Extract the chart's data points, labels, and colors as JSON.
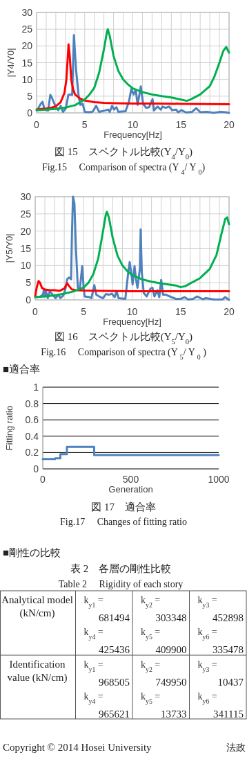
{
  "chart_data": [
    {
      "type": "line",
      "xlabel": "Frequency[Hz]",
      "ylabel": "|Y4/Y0|",
      "xlim": [
        0,
        20
      ],
      "ylim": [
        0,
        30
      ],
      "xticks": [
        0,
        {
          "value": 1,
          "label": null
        },
        {
          "value": 2,
          "label": null
        },
        {
          "value": 3,
          "label": null
        },
        {
          "value": 4,
          "label": null
        },
        5,
        {
          "value": 6,
          "label": null
        },
        {
          "value": 7,
          "label": null
        },
        {
          "value": 8,
          "label": null
        },
        {
          "value": 9,
          "label": null
        },
        10,
        {
          "value": 11,
          "label": null
        },
        {
          "value": 12,
          "label": null
        },
        {
          "value": 13,
          "label": null
        },
        {
          "value": 14,
          "label": null
        },
        15,
        {
          "value": 16,
          "label": null
        },
        {
          "value": 17,
          "label": null
        },
        {
          "value": 18,
          "label": null
        },
        {
          "value": 19,
          "label": null
        },
        20
      ],
      "yticks": [
        0,
        5,
        10,
        15,
        20,
        25,
        30
      ],
      "grid": true,
      "series": [
        {
          "color": "#4f81bd",
          "x": [
            0.07,
            0.43,
            0.62,
            0.8,
            1.0,
            1.2,
            1.43,
            1.6,
            2.0,
            2.26,
            2.5,
            2.74,
            3.05,
            3.3,
            3.5,
            3.7,
            3.88,
            4.1,
            4.38,
            4.55,
            4.8,
            5.0,
            5.4,
            5.8,
            6.2,
            6.5,
            7.1,
            7.45,
            7.6,
            7.85,
            8.05,
            8.3,
            8.5,
            9.25,
            9.6,
            9.85,
            10.08,
            10.3,
            10.5,
            10.83,
            11.07,
            11.4,
            11.7,
            12.05,
            12.2,
            12.57,
            12.9,
            13.1,
            13.4,
            13.76,
            14.1,
            14.5,
            14.7,
            15.07,
            15.55,
            16.14,
            16.6,
            17.0,
            17.7,
            18.4,
            19.1,
            19.6,
            20
          ],
          "values": [
            0.8,
            2.7,
            3.3,
            1.4,
            0.8,
            0.7,
            5.4,
            4.5,
            1.7,
            0.8,
            2.1,
            0.3,
            1.4,
            5.4,
            5.5,
            5.4,
            23.2,
            13,
            4.8,
            2.4,
            2.7,
            0.3,
            0.2,
            0.3,
            2.1,
            0.3,
            0.7,
            1.0,
            0.3,
            2.1,
            1.0,
            1.7,
            0.3,
            0.5,
            3.4,
            7.2,
            5.5,
            6.9,
            2.4,
            7.9,
            2.7,
            1.5,
            1.7,
            4.1,
            0.7,
            1.9,
            1.0,
            1.9,
            1.5,
            1.9,
            0.8,
            1.0,
            0.2,
            0.8,
            0.1,
            0.3,
            1.4,
            0.2,
            0.3,
            0,
            0.3,
            0.2,
            0
          ]
        },
        {
          "color": "#ff0000",
          "x": [
            0,
            0.5,
            1,
            1.5,
            2,
            2.5,
            2.9,
            3.1,
            3.25,
            3.32,
            3.45,
            3.6,
            3.8,
            4.0,
            4.5,
            5,
            6,
            7,
            8,
            10,
            12,
            15,
            20
          ],
          "values": [
            1.0,
            1.2,
            1.3,
            1.5,
            2.0,
            3.2,
            6,
            10,
            17,
            20.5,
            17,
            10,
            7,
            5.5,
            4.3,
            3.7,
            3.2,
            3.0,
            2.9,
            2.8,
            2.8,
            2.7,
            2.6
          ]
        },
        {
          "color": "#00b050",
          "x": [
            0,
            1,
            2,
            3,
            4,
            5,
            5.5,
            6,
            6.5,
            7,
            7.3,
            7.4,
            7.6,
            8,
            8.5,
            9,
            9.5,
            10,
            11,
            12,
            13,
            14,
            15,
            15.6,
            16,
            17,
            18,
            18.5,
            19,
            19.4,
            19.7,
            20
          ],
          "values": [
            0.8,
            1.0,
            1.2,
            1.6,
            2.3,
            4.0,
            5.5,
            7.5,
            12,
            19,
            24,
            25,
            23,
            17,
            12.5,
            10,
            8.5,
            7.3,
            6.2,
            5.5,
            5.0,
            4.6,
            4.0,
            3.6,
            4.0,
            5.5,
            8,
            11,
            15,
            18.5,
            19.7,
            18
          ]
        }
      ],
      "annotations": [
        "図 15　スペクトル比較(Y$_{4}$/Y$_{0}$)",
        "Fig.15　 Comparison of spectra (Y $_{4}$/ Y $_{0}$)"
      ]
    },
    {
      "type": "line",
      "xlabel": "Frequency[Hz]",
      "ylabel": "|Y5/Y0|",
      "xlim": [
        0,
        20
      ],
      "ylim": [
        0,
        30
      ],
      "xticks": [
        0,
        {
          "value": 1,
          "label": null
        },
        {
          "value": 2,
          "label": null
        },
        {
          "value": 3,
          "label": null
        },
        {
          "value": 4,
          "label": null
        },
        5,
        {
          "value": 6,
          "label": null
        },
        {
          "value": 7,
          "label": null
        },
        {
          "value": 8,
          "label": null
        },
        {
          "value": 9,
          "label": null
        },
        10,
        {
          "value": 11,
          "label": null
        },
        {
          "value": 12,
          "label": null
        },
        {
          "value": 13,
          "label": null
        },
        {
          "value": 14,
          "label": null
        },
        15,
        {
          "value": 16,
          "label": null
        },
        {
          "value": 17,
          "label": null
        },
        {
          "value": 18,
          "label": null
        },
        {
          "value": 19,
          "label": null
        },
        20
      ],
      "yticks": [
        0,
        5,
        10,
        15,
        20,
        25,
        30
      ],
      "grid": true,
      "series": [
        {
          "color": "#4f81bd",
          "x": [
            0.1,
            0.5,
            0.8,
            0.9,
            1.0,
            1.1,
            1.3,
            1.5,
            1.8,
            2.1,
            2.4,
            2.6,
            2.9,
            3.1,
            3.3,
            3.5,
            3.7,
            3.8,
            3.9,
            4.05,
            4.2,
            4.4,
            4.6,
            4.85,
            5.0,
            5.1,
            5.6,
            5.8,
            6.1,
            6.3,
            6.6,
            7.0,
            7.3,
            7.6,
            7.9,
            8.2,
            8.4,
            8.6,
            9.3,
            9.6,
            9.75,
            9.95,
            10.05,
            10.25,
            10.4,
            10.55,
            10.8,
            10.88,
            11.0,
            11.2,
            11.5,
            11.7,
            11.9,
            12.1,
            12.3,
            12.6,
            12.8,
            13.0,
            13.2,
            13.5,
            13.9,
            14.5,
            15.0,
            15.4,
            15.8,
            16.3,
            16.7,
            17.3,
            17.6,
            18.5,
            19.3,
            19.6,
            20
          ],
          "values": [
            0.8,
            0.9,
            1.5,
            3.0,
            1.0,
            2.7,
            0.5,
            2.5,
            1.5,
            0.5,
            1.5,
            0.5,
            1.3,
            3.0,
            6.0,
            6.5,
            6.0,
            20,
            30,
            28,
            15,
            3.5,
            3.0,
            9.8,
            3.5,
            1.0,
            0.8,
            0.5,
            4.3,
            1.5,
            1.0,
            0.5,
            1.7,
            1.5,
            1.8,
            0.8,
            2.5,
            0.5,
            0.3,
            8,
            11,
            7,
            4.5,
            9.8,
            6,
            3.5,
            9,
            20.5,
            8,
            2,
            1.0,
            2.2,
            3.3,
            3.5,
            1.0,
            2.8,
            0.8,
            5.8,
            1.5,
            1.5,
            1.0,
            0.3,
            0.3,
            0.8,
            0.1,
            0.3,
            1.0,
            0.2,
            0.5,
            0.1,
            0.1,
            0.8,
            0
          ]
        },
        {
          "color": "#ff0000",
          "x": [
            0,
            0.15,
            0.35,
            0.5,
            0.7,
            1.0,
            1.5,
            2.0,
            2.5,
            3.0,
            3.3,
            3.5,
            3.8,
            4.2,
            5,
            7,
            10,
            15,
            20
          ],
          "values": [
            1.0,
            3.5,
            5.5,
            5.0,
            3.5,
            3.0,
            2.8,
            2.8,
            2.6,
            3.3,
            4.8,
            4.0,
            3.0,
            2.8,
            2.7,
            2.6,
            2.5,
            2.5,
            2.5
          ]
        },
        {
          "color": "#00b050",
          "x": [
            0,
            1,
            2,
            3,
            4,
            5,
            5.5,
            6,
            6.5,
            7,
            7.3,
            7.4,
            7.6,
            8,
            8.5,
            9,
            9.5,
            10,
            11,
            12,
            13,
            14,
            14.5,
            15,
            15.5,
            16,
            17,
            18,
            18.7,
            19.2,
            19.6,
            19.8,
            20
          ],
          "values": [
            0.8,
            1.0,
            1.3,
            1.8,
            2.5,
            3.6,
            5,
            7.5,
            12,
            20,
            25,
            25.6,
            24,
            18,
            12.8,
            10,
            8.4,
            7.2,
            6,
            5.3,
            4.8,
            4.4,
            4.2,
            3.7,
            4.0,
            4.8,
            6.3,
            9,
            13,
            19,
            23.5,
            24,
            22
          ]
        }
      ],
      "annotations": [
        "図 16　スペクトル比較(Y$_{5}$/Y$_{0}$)",
        "Fig.16　 Comparison of spectra (Y $_{5}$/ Y $_{0}$ )"
      ]
    },
    {
      "type": "step",
      "title": "■適合率",
      "xlabel": "Generation",
      "ylabel": "Fitting ratio",
      "xlim": [
        0,
        1000
      ],
      "ylim": [
        0,
        1
      ],
      "xticks": [
        0,
        500,
        1000
      ],
      "yticks": [
        0,
        0.2,
        0.4,
        0.6,
        0.8,
        1
      ],
      "grid": "y",
      "series": [
        {
          "color": "#4f81bd",
          "x": [
            0,
            70,
            100,
            137,
            292,
            1000
          ],
          "values": [
            0.12,
            0.13,
            0.18,
            0.27,
            0.17,
            0.17
          ]
        }
      ],
      "annotations": [
        "図 17　適合率",
        "Fig.17　 Changes of fitting ratio"
      ]
    },
    {
      "type": "other",
      "title": "表 2　各層の剛性比較",
      "subtitle": "Table 2　 Rigidity of each story",
      "y_categories": [
        "Analytical model (kN/cm)",
        "Identification value (kN/cm)"
      ],
      "cell_labels": [
        [
          [
            "k$_{y1}$ =",
            "681494"
          ],
          [
            "k$_{y2}$ =",
            "303348"
          ],
          [
            "k$_{y3}$ =",
            "452898"
          ],
          [
            "k$_{y4}$ =",
            "425436"
          ],
          [
            "k$_{y5}$ =",
            "409900"
          ],
          [
            "k$_{y6}$ =",
            "335478"
          ]
        ],
        [
          [
            "k$_{y1}$ =",
            "968505"
          ],
          [
            "k$_{y2}$ =",
            "749950"
          ],
          [
            "k$_{y3}$ =",
            "10437"
          ],
          [
            "k$_{y4}$ =",
            "965621"
          ],
          [
            "k$_{y5}$ =",
            "13733"
          ],
          [
            "k$_{y6}$ =",
            "341115"
          ]
        ]
      ],
      "annotations": [
        "■剛性の比較",
        "Copyright © 2014 Hosei University",
        "法政"
      ]
    }
  ]
}
